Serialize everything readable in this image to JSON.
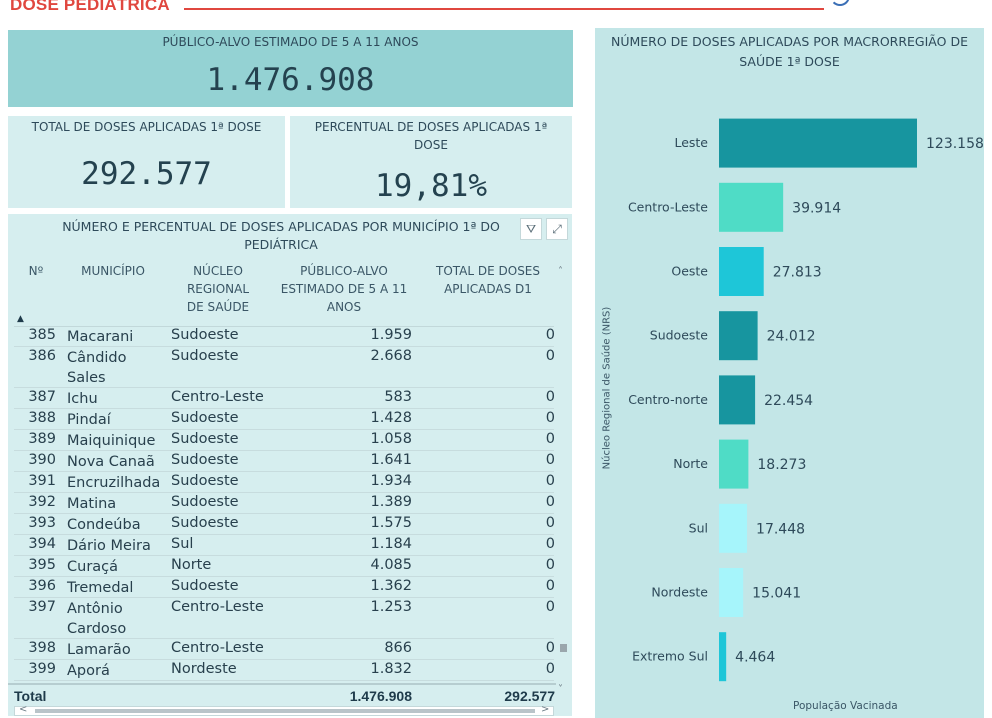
{
  "header": {
    "title": "DOSE PEDIÁTRICA"
  },
  "kpi_target": {
    "label": "PÚBLICO-ALVO ESTIMADO DE 5 A 11 ANOS",
    "value": "1.476.908"
  },
  "kpi_total": {
    "label": "TOTAL DE DOSES APLICADAS 1ª DOSE",
    "value": "292.577"
  },
  "kpi_percent": {
    "label": "PERCENTUAL DE DOSES APLICADAS 1ª DOSE",
    "value": "19,81%"
  },
  "table": {
    "title": "NÚMERO E PERCENTUAL DE DOSES APLICADAS POR MUNICÍPIO 1ª DO",
    "title_line2": "PEDIÁTRICA",
    "filter_icon": "⛛",
    "focus_icon": "⤢",
    "columns": [
      "Nº",
      "MUNICÍPIO",
      "NÚCLEO REGIONAL DE SAÚDE",
      "PÚBLICO-ALVO ESTIMADO DE 5 A 11 ANOS",
      "TOTAL DE DOSES APLICADAS D1"
    ],
    "rows": [
      {
        "n": "385",
        "municipio": "Macarani",
        "nrs": "Sudoeste",
        "publico": "1.959",
        "total": "0"
      },
      {
        "n": "386",
        "municipio": "Cândido Sales",
        "nrs": "Sudoeste",
        "publico": "2.668",
        "total": "0"
      },
      {
        "n": "387",
        "municipio": "Ichu",
        "nrs": "Centro-Leste",
        "publico": "583",
        "total": "0"
      },
      {
        "n": "388",
        "municipio": "Pindaí",
        "nrs": "Sudoeste",
        "publico": "1.428",
        "total": "0"
      },
      {
        "n": "389",
        "municipio": "Maiquinique",
        "nrs": "Sudoeste",
        "publico": "1.058",
        "total": "0"
      },
      {
        "n": "390",
        "municipio": "Nova Canaã",
        "nrs": "Sudoeste",
        "publico": "1.641",
        "total": "0"
      },
      {
        "n": "391",
        "municipio": "Encruzilhada",
        "nrs": "Sudoeste",
        "publico": "1.934",
        "total": "0"
      },
      {
        "n": "392",
        "municipio": "Matina",
        "nrs": "Sudoeste",
        "publico": "1.389",
        "total": "0"
      },
      {
        "n": "393",
        "municipio": "Condeúba",
        "nrs": "Sudoeste",
        "publico": "1.575",
        "total": "0"
      },
      {
        "n": "394",
        "municipio": "Dário Meira",
        "nrs": "Sul",
        "publico": "1.184",
        "total": "0"
      },
      {
        "n": "395",
        "municipio": "Curaçá",
        "nrs": "Norte",
        "publico": "4.085",
        "total": "0"
      },
      {
        "n": "396",
        "municipio": "Tremedal",
        "nrs": "Sudoeste",
        "publico": "1.362",
        "total": "0"
      },
      {
        "n": "397",
        "municipio": "Antônio Cardoso",
        "nrs": "Centro-Leste",
        "publico": "1.253",
        "total": "0"
      },
      {
        "n": "398",
        "municipio": "Lamarão",
        "nrs": "Centro-Leste",
        "publico": "866",
        "total": "0"
      },
      {
        "n": "399",
        "municipio": "Aporá",
        "nrs": "Nordeste",
        "publico": "1.832",
        "total": "0"
      }
    ],
    "total_label": "Total",
    "total_publico": "1.476.908",
    "total_doses": "292.577"
  },
  "chart_data": {
    "type": "bar",
    "orientation": "horizontal",
    "title": "NÚMERO DE DOSES APLICADAS POR MACRORREGIÃO DE SAÚDE 1ª DOSE",
    "ylabel": "Núcleo Regional de Saúde (NRS)",
    "xlabel": "População Vacinada",
    "categories": [
      "Leste",
      "Centro-Leste",
      "Oeste",
      "Sudoeste",
      "Centro-norte",
      "Norte",
      "Sul",
      "Nordeste",
      "Extremo Sul"
    ],
    "values": [
      123158,
      39914,
      27813,
      24012,
      22454,
      18273,
      17448,
      15041,
      4464
    ],
    "value_labels": [
      "123.158",
      "39.914",
      "27.813",
      "24.012",
      "22.454",
      "18.273",
      "17.448",
      "15.041",
      "4.464"
    ],
    "colors": [
      "#17959f",
      "#4fdcc6",
      "#1ec6d8",
      "#17959f",
      "#17959f",
      "#4fdcc6",
      "#a6f5fb",
      "#a6f5fb",
      "#1ec6d8"
    ],
    "xlim": [
      0,
      123158
    ],
    "grid": false,
    "legend": "none"
  },
  "colors": {
    "header_accent": "#e0473f",
    "panel_bg": "#d6eeef",
    "kpi_dark_bg": "#94d2d3",
    "chart_bg": "#c3e6e7"
  }
}
